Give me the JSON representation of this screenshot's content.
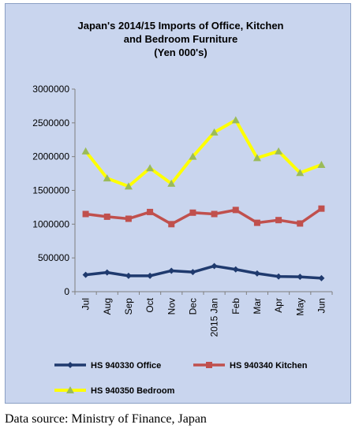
{
  "chart_data": {
    "type": "line",
    "title": [
      "Japan's 2014/15  Imports of Office, Kitchen",
      "and Bedroom Furniture",
      "(Yen 000's)"
    ],
    "categories": [
      "Jul",
      "Aug",
      "Sep",
      "Oct",
      "Nov",
      "Dec",
      "2015 Jan",
      "Feb",
      "Mar",
      "Apr",
      "May",
      "Jun"
    ],
    "y_ticks": [
      "0",
      "500000",
      "1000000",
      "1500000",
      "2000000",
      "2500000",
      "3000000"
    ],
    "ylim": [
      0,
      3000000
    ],
    "grid": false,
    "legend_position": "bottom",
    "series": [
      {
        "name": "HS 940330 Office",
        "color": "#1f3a6e",
        "marker": "diamond",
        "values": [
          250000,
          285000,
          235000,
          235000,
          310000,
          290000,
          380000,
          330000,
          270000,
          225000,
          220000,
          200000
        ]
      },
      {
        "name": "HS 940340 Kitchen",
        "color": "#c0504d",
        "marker": "square",
        "values": [
          1150000,
          1110000,
          1080000,
          1180000,
          1000000,
          1170000,
          1150000,
          1210000,
          1020000,
          1060000,
          1010000,
          1230000
        ]
      },
      {
        "name": "HS 940350 Bedroom",
        "color": "#ffff00",
        "marker": "triangle",
        "marker_color": "#9bbb59",
        "values": [
          2080000,
          1680000,
          1560000,
          1830000,
          1600000,
          2000000,
          2360000,
          2540000,
          1980000,
          2080000,
          1760000,
          1880000
        ]
      }
    ]
  },
  "source_note": "Data source: Ministry of Finance, Japan"
}
